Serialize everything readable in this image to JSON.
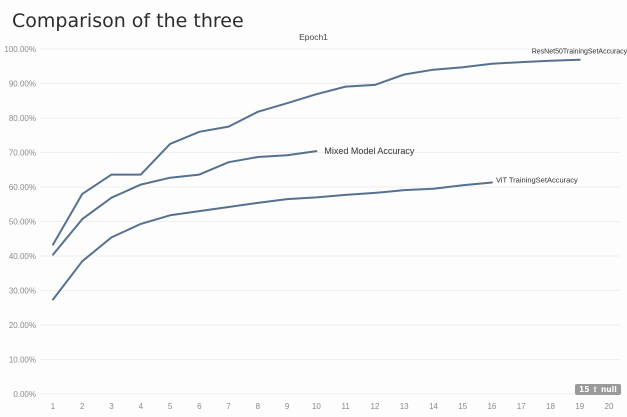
{
  "page_title": "Comparison of the three",
  "null_indicator": "15 ⇧ null",
  "chart_data": {
    "type": "line",
    "title": "Epoch1",
    "x": [
      1,
      2,
      3,
      4,
      5,
      6,
      7,
      8,
      9,
      10,
      11,
      12,
      13,
      14,
      15,
      16,
      17,
      18,
      19,
      20
    ],
    "xlim": [
      1,
      20
    ],
    "ylim": [
      0,
      100
    ],
    "y_ticks": [
      "0.00%",
      "10.00%",
      "20.00%",
      "30.00%",
      "40.00%",
      "50.00%",
      "60.00%",
      "70.00%",
      "80.00%",
      "90.00%",
      "100.00%"
    ],
    "grid": true,
    "line_color": "#56718f",
    "series": [
      {
        "name": "ResNet50TrainingSetAccuracy",
        "x": [
          1,
          2,
          3,
          4,
          5,
          6,
          7,
          8,
          9,
          10,
          11,
          12,
          13,
          14,
          15,
          16,
          17,
          18,
          19
        ],
        "values": [
          43.3,
          58.0,
          63.6,
          63.6,
          72.5,
          76.0,
          77.5,
          81.8,
          84.3,
          86.9,
          89.1,
          89.6,
          92.6,
          94.0,
          94.7,
          95.7,
          96.2,
          96.6,
          96.9
        ]
      },
      {
        "name": "Mixed Model Accuracy",
        "x": [
          1,
          2,
          3,
          4,
          5,
          6,
          7,
          8,
          9,
          10
        ],
        "values": [
          40.4,
          50.7,
          56.9,
          60.7,
          62.7,
          63.6,
          67.2,
          68.7,
          69.2,
          70.4
        ]
      },
      {
        "name": "ViT TrainingSetAccuracy",
        "x": [
          1,
          2,
          3,
          4,
          5,
          6,
          7,
          8,
          9,
          10,
          11,
          12,
          13,
          14,
          15,
          16
        ],
        "values": [
          27.4,
          38.5,
          45.4,
          49.3,
          51.8,
          53.0,
          54.2,
          55.4,
          56.5,
          57.0,
          57.7,
          58.3,
          59.1,
          59.5,
          60.5,
          61.3
        ]
      }
    ]
  }
}
